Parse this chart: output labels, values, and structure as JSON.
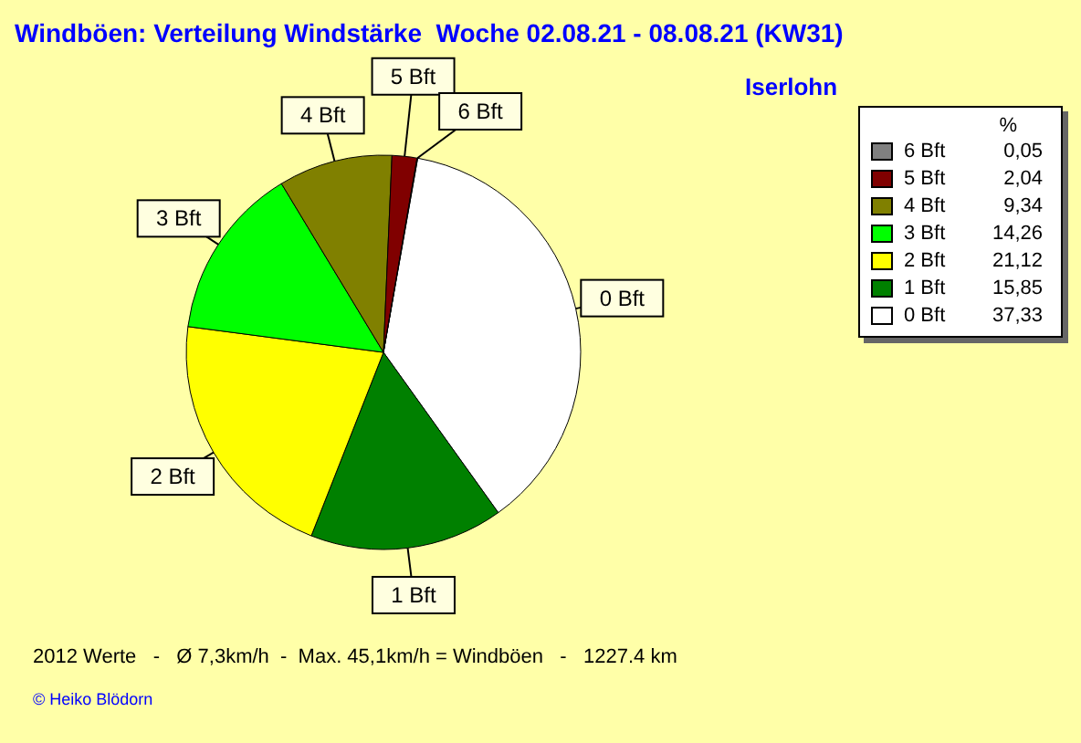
{
  "chart_data": {
    "type": "pie",
    "title": "Windböen: Verteilung Windstärke  Woche 02.08.21 - 08.08.21 (KW31)",
    "subtitle": "Iserlohn",
    "legend_title": "%",
    "categories": [
      "0 Bft",
      "1 Bft",
      "2 Bft",
      "3 Bft",
      "4 Bft",
      "5 Bft",
      "6 Bft"
    ],
    "values": [
      37.33,
      15.85,
      21.12,
      14.26,
      9.34,
      2.04,
      0.05
    ],
    "colors": [
      "#ffffff",
      "#008000",
      "#ffff00",
      "#00ff00",
      "#808000",
      "#800000",
      "#808080"
    ],
    "value_labels": [
      "37,33",
      "15,85",
      "21,12",
      "14,26",
      "9,34",
      "2,04",
      "0,05"
    ],
    "legend": "top right",
    "annotations": [
      "2012 Werte   -   Ø 7,3km/h  -  Max. 45,1km/h = Windböen   -   1227.4 km",
      "© Heiko Blödorn"
    ]
  }
}
